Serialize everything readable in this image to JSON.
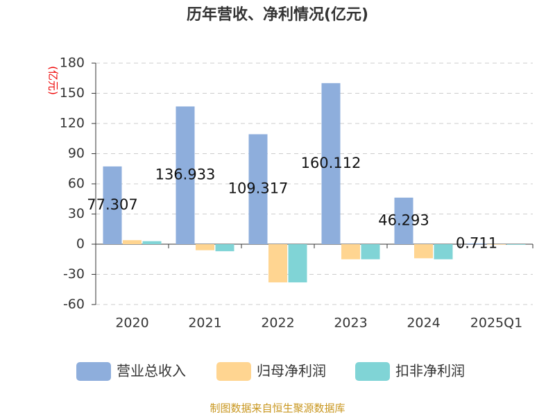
{
  "chart_data": {
    "type": "bar",
    "title": "历年营收、净利情况(亿元)",
    "y_label": "(亿元)",
    "categories": [
      "2020",
      "2021",
      "2022",
      "2023",
      "2024",
      "2025Q1"
    ],
    "series": [
      {
        "name": "营业总收入",
        "color": "#8eaedc",
        "values": [
          77.307,
          136.933,
          109.317,
          160.112,
          46.293,
          0.711
        ],
        "show_labels": true
      },
      {
        "name": "归母净利润",
        "color": "#ffd591",
        "values": [
          4,
          -6,
          -38,
          -15,
          -14,
          -0.5
        ],
        "show_labels": false
      },
      {
        "name": "扣非净利润",
        "color": "#80d4d6",
        "values": [
          3,
          -7,
          -38,
          -15,
          -15,
          -0.6
        ],
        "show_labels": false
      }
    ],
    "ylim": [
      -60,
      180
    ],
    "yticks": [
      -60,
      -30,
      0,
      30,
      60,
      90,
      120,
      150,
      180
    ],
    "grid": true,
    "source": "制图数据来自恒生聚源数据库"
  }
}
